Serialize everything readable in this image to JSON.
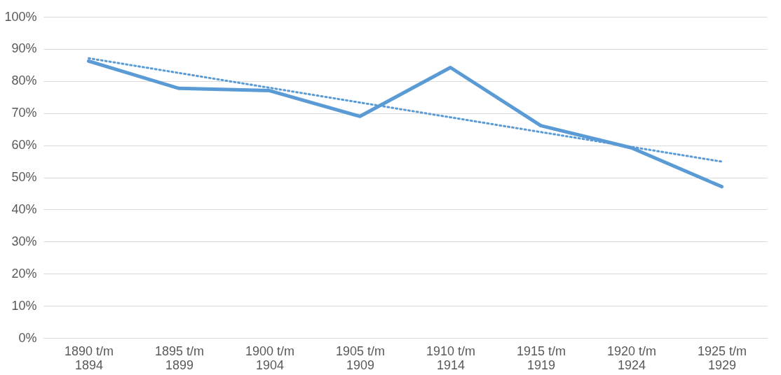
{
  "chart_data": {
    "type": "line",
    "categories": [
      "1890 t/m\n1894",
      "1895 t/m\n1899",
      "1900 t/m\n1904",
      "1905 t/m\n1909",
      "1910 t/m\n1914",
      "1915 t/m\n1919",
      "1920 t/m\n1924",
      "1925 t/m\n1929"
    ],
    "series": [
      {
        "color": "#5b9bd5",
        "values": [
          86.2,
          77.7,
          77.0,
          69.0,
          84.2,
          66.1,
          59.2,
          47.1
        ],
        "line_style": "solid"
      },
      {
        "color": "#5b9bd5",
        "values": [
          87.1,
          82.5,
          77.9,
          73.3,
          68.7,
          64.1,
          59.5,
          54.9
        ],
        "line_style": "dotted"
      }
    ],
    "ylim": [
      0,
      100
    ],
    "yticks": [
      {
        "value": 0,
        "label": "0%"
      },
      {
        "value": 10,
        "label": "10%"
      },
      {
        "value": 20,
        "label": "20%"
      },
      {
        "value": 30,
        "label": "30%"
      },
      {
        "value": 40,
        "label": "40%"
      },
      {
        "value": 50,
        "label": "50%"
      },
      {
        "value": 60,
        "label": "60%"
      },
      {
        "value": 70,
        "label": "70%"
      },
      {
        "value": 80,
        "label": "80%"
      },
      {
        "value": 90,
        "label": "90%"
      },
      {
        "value": 100,
        "label": "100%"
      }
    ],
    "grid": "y",
    "marker": "none"
  }
}
